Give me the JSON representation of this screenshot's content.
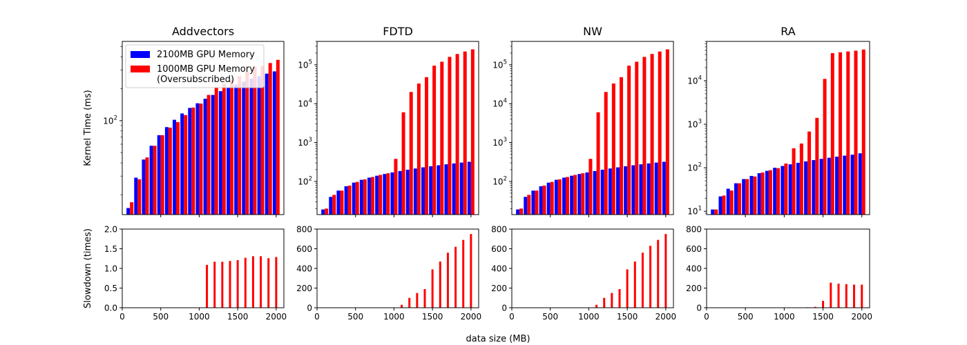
{
  "figure": {
    "xlabel": "data size (MB)",
    "legend_location": "top-left (Addvectors panel)",
    "legend": [
      {
        "label": "2100MB GPU Memory",
        "color": "#0000ff"
      },
      {
        "label": "1000MB GPU Memory\n(Oversubscribed)",
        "color": "#ff0000"
      }
    ]
  },
  "chart_data": [
    {
      "type": "bar",
      "title": "Addvectors",
      "ylabel": "Kernel Time (ms)",
      "yscale": "log",
      "ylim": [
        13,
        560
      ],
      "ytick_values": [
        100
      ],
      "ytick_labels": [
        "10^2"
      ],
      "x": [
        100,
        200,
        300,
        400,
        500,
        600,
        700,
        800,
        900,
        1000,
        1100,
        1200,
        1300,
        1400,
        1500,
        1600,
        1700,
        1800,
        1900,
        2000
      ],
      "xlim": [
        0,
        2100
      ],
      "xticks": [
        500,
        1000,
        1500,
        2000
      ],
      "series": [
        {
          "name": "2100MB GPU Memory",
          "color": "#0000ff",
          "values": [
            15,
            29,
            43,
            58,
            73,
            87,
            102,
            117,
            132,
            146,
            161,
            175,
            190,
            205,
            219,
            234,
            249,
            263,
            278,
            292
          ]
        },
        {
          "name": "1000MB GPU Memory\n(Oversubscribed)",
          "color": "#ff0000",
          "values": [
            17,
            28,
            45,
            58,
            73,
            86,
            97,
            113,
            133,
            145,
            175,
            205,
            223,
            243,
            263,
            291,
            324,
            330,
            350,
            375
          ]
        }
      ]
    },
    {
      "type": "bar",
      "title": "FDTD",
      "ylabel": "",
      "yscale": "log",
      "ylim": [
        14,
        400000
      ],
      "ytick_values": [
        100,
        1000,
        10000,
        100000
      ],
      "ytick_labels": [
        "10^2",
        "10^3",
        "10^4",
        "10^5"
      ],
      "x": [
        100,
        200,
        300,
        400,
        500,
        600,
        700,
        800,
        900,
        1000,
        1100,
        1200,
        1300,
        1400,
        1500,
        1600,
        1700,
        1800,
        1900,
        2000
      ],
      "xlim": [
        0,
        2100
      ],
      "xticks": [
        500,
        1000,
        1500,
        2000
      ],
      "series": [
        {
          "name": "2100MB GPU Memory",
          "color": "#0000ff",
          "values": [
            19,
            40,
            58,
            75,
            93,
            110,
            125,
            140,
            155,
            170,
            185,
            200,
            215,
            230,
            245,
            260,
            275,
            290,
            305,
            320
          ]
        },
        {
          "name": "1000MB GPU Memory\n(Oversubscribed)",
          "color": "#ff0000",
          "values": [
            20,
            45,
            58,
            78,
            97,
            113,
            130,
            147,
            162,
            380,
            6000,
            20000,
            33000,
            48000,
            95000,
            120000,
            160000,
            190000,
            220000,
            250000
          ]
        }
      ]
    },
    {
      "type": "bar",
      "title": "NW",
      "ylabel": "",
      "yscale": "log",
      "ylim": [
        14,
        400000
      ],
      "ytick_values": [
        100,
        1000,
        10000,
        100000
      ],
      "ytick_labels": [
        "10^2",
        "10^3",
        "10^4",
        "10^5"
      ],
      "x": [
        100,
        200,
        300,
        400,
        500,
        600,
        700,
        800,
        900,
        1000,
        1100,
        1200,
        1300,
        1400,
        1500,
        1600,
        1700,
        1800,
        1900,
        2000
      ],
      "xlim": [
        0,
        2100
      ],
      "xticks": [
        500,
        1000,
        1500,
        2000
      ],
      "series": [
        {
          "name": "2100MB GPU Memory",
          "color": "#0000ff",
          "values": [
            19,
            40,
            58,
            75,
            93,
            110,
            125,
            140,
            155,
            170,
            185,
            200,
            215,
            230,
            245,
            260,
            275,
            290,
            305,
            320
          ]
        },
        {
          "name": "1000MB GPU Memory\n(Oversubscribed)",
          "color": "#ff0000",
          "values": [
            20,
            45,
            58,
            78,
            97,
            113,
            130,
            147,
            162,
            380,
            6000,
            20000,
            33000,
            48000,
            95000,
            120000,
            160000,
            190000,
            220000,
            250000
          ]
        }
      ]
    },
    {
      "type": "bar",
      "title": "RA",
      "ylabel": "",
      "yscale": "log",
      "ylim": [
        8.4,
        80000
      ],
      "ytick_values": [
        10,
        100,
        1000,
        10000
      ],
      "ytick_labels": [
        "10^1",
        "10^2",
        "10^3",
        "10^4"
      ],
      "x": [
        100,
        200,
        300,
        400,
        500,
        600,
        700,
        800,
        900,
        1000,
        1100,
        1200,
        1300,
        1400,
        1500,
        1600,
        1700,
        1800,
        1900,
        2000
      ],
      "xlim": [
        0,
        2100
      ],
      "xticks": [
        500,
        1000,
        1500,
        2000
      ],
      "series": [
        {
          "name": "2100MB GPU Memory",
          "color": "#0000ff",
          "values": [
            11,
            22,
            33,
            44,
            55,
            65,
            75,
            85,
            100,
            110,
            120,
            130,
            140,
            150,
            160,
            170,
            180,
            190,
            200,
            215
          ]
        },
        {
          "name": "1000MB GPU Memory\n(Oversubscribed)",
          "color": "#ff0000",
          "values": [
            11,
            23,
            30,
            44,
            55,
            63,
            78,
            88,
            98,
            125,
            280,
            360,
            680,
            1400,
            11000,
            43000,
            45000,
            47000,
            49000,
            52000
          ]
        }
      ]
    },
    {
      "type": "bar",
      "title": "",
      "ylabel": "Slowdown (times)",
      "yscale": "linear",
      "ylim": [
        0,
        2.0
      ],
      "ytick_values": [
        0,
        0.5,
        1,
        1.5,
        2
      ],
      "ytick_labels": [
        "0.0",
        "0.5",
        "1.0",
        "1.5",
        "2.0"
      ],
      "xlim": [
        0,
        2100
      ],
      "xticks": [
        0,
        500,
        1000,
        1500,
        2000
      ],
      "series": [
        {
          "name": "Slowdown",
          "color": "#ff0000",
          "x": [
            1100,
            1200,
            1300,
            1400,
            1500,
            1600,
            1700,
            1800,
            1900,
            2000
          ],
          "values": [
            1.09,
            1.17,
            1.17,
            1.19,
            1.21,
            1.27,
            1.31,
            1.31,
            1.26,
            1.29
          ]
        }
      ]
    },
    {
      "type": "bar",
      "title": "",
      "ylabel": "",
      "yscale": "linear",
      "ylim": [
        0,
        800
      ],
      "ytick_values": [
        0,
        200,
        400,
        600,
        800
      ],
      "ytick_labels": [
        "0",
        "200",
        "400",
        "600",
        "800"
      ],
      "xlim": [
        0,
        2100
      ],
      "xticks": [
        0,
        500,
        1000,
        1500,
        2000
      ],
      "series": [
        {
          "name": "Slowdown",
          "color": "#ff0000",
          "x": [
            1100,
            1200,
            1300,
            1400,
            1500,
            1600,
            1700,
            1800,
            1900,
            2000
          ],
          "values": [
            30,
            100,
            150,
            190,
            390,
            470,
            560,
            620,
            690,
            750
          ]
        }
      ]
    },
    {
      "type": "bar",
      "title": "",
      "ylabel": "",
      "yscale": "linear",
      "ylim": [
        0,
        800
      ],
      "ytick_values": [
        0,
        200,
        400,
        600,
        800
      ],
      "ytick_labels": [
        "0",
        "200",
        "400",
        "600",
        "800"
      ],
      "xlim": [
        0,
        2100
      ],
      "xticks": [
        0,
        500,
        1000,
        1500,
        2000
      ],
      "series": [
        {
          "name": "Slowdown",
          "color": "#ff0000",
          "x": [
            1100,
            1200,
            1300,
            1400,
            1500,
            1600,
            1700,
            1800,
            1900,
            2000
          ],
          "values": [
            30,
            100,
            150,
            190,
            390,
            470,
            560,
            630,
            690,
            750
          ]
        }
      ]
    },
    {
      "type": "bar",
      "title": "",
      "ylabel": "",
      "yscale": "linear",
      "ylim": [
        0,
        800
      ],
      "ytick_values": [
        0,
        200,
        400,
        600,
        800
      ],
      "ytick_labels": [
        "0",
        "200",
        "400",
        "600",
        "800"
      ],
      "xlim": [
        0,
        2100
      ],
      "xticks": [
        0,
        500,
        1000,
        1500,
        2000
      ],
      "series": [
        {
          "name": "Slowdown",
          "color": "#ff0000",
          "x": [
            1300,
            1400,
            1500,
            1600,
            1700,
            1800,
            1900,
            2000
          ],
          "values": [
            5,
            9,
            70,
            255,
            245,
            240,
            235,
            235
          ]
        }
      ]
    }
  ]
}
